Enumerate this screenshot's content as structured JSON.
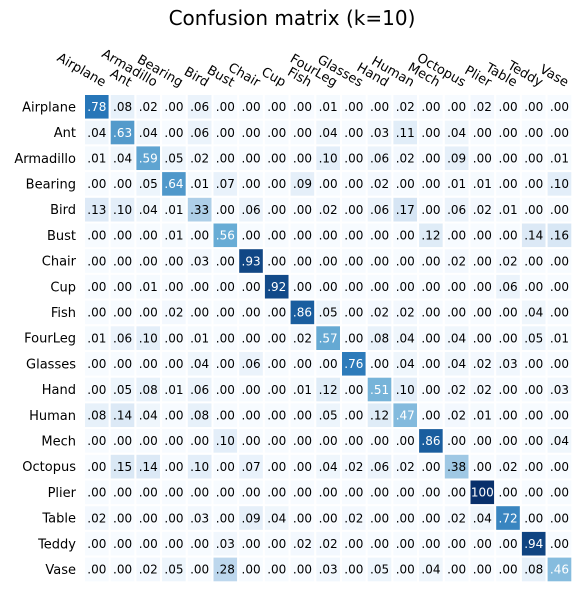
{
  "chart_data": {
    "type": "heatmap",
    "title": "Confusion matrix (k=10)",
    "labels": [
      "Airplane",
      "Ant",
      "Armadillo",
      "Bearing",
      "Bird",
      "Bust",
      "Chair",
      "Cup",
      "Fish",
      "FourLeg",
      "Glasses",
      "Hand",
      "Human",
      "Mech",
      "Octopus",
      "Plier",
      "Table",
      "Teddy",
      "Vase"
    ],
    "cell_text": [
      [
        ".78",
        ".08",
        ".02",
        ".00",
        ".06",
        ".00",
        ".00",
        ".00",
        ".00",
        ".01",
        ".00",
        ".00",
        ".02",
        ".00",
        ".00",
        ".02",
        ".00",
        ".00",
        ".00"
      ],
      [
        ".04",
        ".63",
        ".04",
        ".00",
        ".06",
        ".00",
        ".00",
        ".00",
        ".00",
        ".04",
        ".00",
        ".03",
        ".11",
        ".00",
        ".04",
        ".00",
        ".00",
        ".00",
        ".00"
      ],
      [
        ".01",
        ".04",
        ".59",
        ".05",
        ".02",
        ".00",
        ".00",
        ".00",
        ".00",
        ".10",
        ".00",
        ".06",
        ".02",
        ".00",
        ".09",
        ".00",
        ".00",
        ".00",
        ".01"
      ],
      [
        ".00",
        ".00",
        ".05",
        ".64",
        ".01",
        ".07",
        ".00",
        ".00",
        ".09",
        ".00",
        ".00",
        ".02",
        ".00",
        ".00",
        ".01",
        ".01",
        ".00",
        ".00",
        ".10"
      ],
      [
        ".13",
        ".10",
        ".04",
        ".01",
        ".33",
        ".00",
        ".06",
        ".00",
        ".00",
        ".02",
        ".00",
        ".06",
        ".17",
        ".00",
        ".06",
        ".02",
        ".01",
        ".00",
        ".00"
      ],
      [
        ".00",
        ".00",
        ".00",
        ".01",
        ".00",
        ".56",
        ".00",
        ".00",
        ".00",
        ".00",
        ".00",
        ".00",
        ".00",
        ".12",
        ".00",
        ".00",
        ".00",
        ".14",
        ".16"
      ],
      [
        ".00",
        ".00",
        ".00",
        ".00",
        ".03",
        ".00",
        ".93",
        ".00",
        ".00",
        ".00",
        ".00",
        ".00",
        ".00",
        ".00",
        ".02",
        ".00",
        ".02",
        ".00",
        ".00"
      ],
      [
        ".00",
        ".00",
        ".01",
        ".00",
        ".00",
        ".00",
        ".00",
        ".92",
        ".00",
        ".00",
        ".00",
        ".00",
        ".00",
        ".00",
        ".00",
        ".00",
        ".06",
        ".00",
        ".00"
      ],
      [
        ".00",
        ".00",
        ".00",
        ".02",
        ".00",
        ".00",
        ".00",
        ".00",
        ".86",
        ".05",
        ".00",
        ".02",
        ".02",
        ".00",
        ".00",
        ".00",
        ".00",
        ".04",
        ".00"
      ],
      [
        ".01",
        ".06",
        ".10",
        ".00",
        ".01",
        ".00",
        ".00",
        ".00",
        ".02",
        ".57",
        ".00",
        ".08",
        ".04",
        ".00",
        ".04",
        ".00",
        ".00",
        ".05",
        ".01"
      ],
      [
        ".00",
        ".00",
        ".00",
        ".00",
        ".04",
        ".00",
        ".06",
        ".00",
        ".00",
        ".00",
        ".76",
        ".00",
        ".04",
        ".00",
        ".04",
        ".02",
        ".03",
        ".00",
        ".00"
      ],
      [
        ".00",
        ".05",
        ".08",
        ".01",
        ".06",
        ".00",
        ".00",
        ".00",
        ".01",
        ".12",
        ".00",
        ".51",
        ".10",
        ".00",
        ".02",
        ".02",
        ".00",
        ".00",
        ".03"
      ],
      [
        ".08",
        ".14",
        ".04",
        ".00",
        ".08",
        ".00",
        ".00",
        ".00",
        ".00",
        ".05",
        ".00",
        ".12",
        ".47",
        ".00",
        ".02",
        ".01",
        ".00",
        ".00",
        ".00"
      ],
      [
        ".00",
        ".00",
        ".00",
        ".00",
        ".00",
        ".10",
        ".00",
        ".00",
        ".00",
        ".00",
        ".00",
        ".00",
        ".00",
        ".86",
        ".00",
        ".00",
        ".00",
        ".00",
        ".04"
      ],
      [
        ".00",
        ".15",
        ".14",
        ".00",
        ".10",
        ".00",
        ".07",
        ".00",
        ".00",
        ".04",
        ".02",
        ".06",
        ".02",
        ".00",
        ".38",
        ".00",
        ".02",
        ".00",
        ".00"
      ],
      [
        ".00",
        ".00",
        ".00",
        ".00",
        ".00",
        ".00",
        ".00",
        ".00",
        ".00",
        ".00",
        ".00",
        ".00",
        ".00",
        ".00",
        ".00",
        "100",
        ".00",
        ".00",
        ".00"
      ],
      [
        ".02",
        ".00",
        ".00",
        ".00",
        ".03",
        ".00",
        ".09",
        ".04",
        ".00",
        ".00",
        ".02",
        ".00",
        ".00",
        ".00",
        ".02",
        ".04",
        ".72",
        ".00",
        ".00"
      ],
      [
        ".00",
        ".00",
        ".00",
        ".00",
        ".00",
        ".03",
        ".00",
        ".00",
        ".02",
        ".02",
        ".00",
        ".00",
        ".00",
        ".00",
        ".00",
        ".00",
        ".00",
        ".94",
        ".00"
      ],
      [
        ".00",
        ".00",
        ".02",
        ".05",
        ".00",
        ".28",
        ".00",
        ".00",
        ".00",
        ".03",
        ".00",
        ".05",
        ".00",
        ".04",
        ".00",
        ".00",
        ".00",
        ".08",
        ".46"
      ]
    ],
    "colormap": "Blues",
    "vmin": 0,
    "vmax": 1,
    "x_tick_rotation_deg": -30,
    "grid": false,
    "colorbar": false
  },
  "colors": {
    "low": "#f7fbff",
    "mid1": "#c6dbef",
    "mid2": "#6baed6",
    "mid3": "#2171b5",
    "high": "#08306b",
    "cell_border": "#ffffff",
    "text_dark": "#000000",
    "text_light": "#ffffff"
  }
}
